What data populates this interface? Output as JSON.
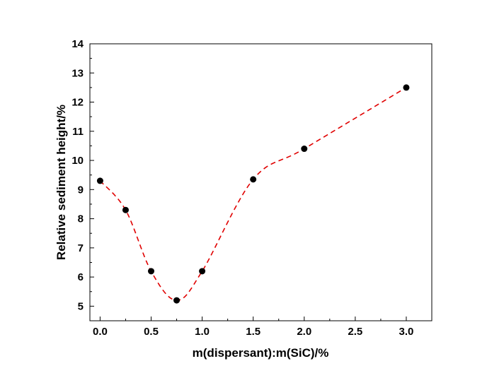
{
  "chart_data": {
    "type": "scatter",
    "title": "",
    "xlabel": "m(dispersant):m(SiC)/%",
    "ylabel": "Relative sediment height/%",
    "xlim": [
      -0.1,
      3.25
    ],
    "ylim": [
      4.5,
      14
    ],
    "x_ticks": [
      0.0,
      0.5,
      1.0,
      1.5,
      2.0,
      2.5,
      3.0
    ],
    "x_tick_labels": [
      "0.0",
      "0.5",
      "1.0",
      "1.5",
      "2.0",
      "2.5",
      "3.0"
    ],
    "y_ticks": [
      5,
      6,
      7,
      8,
      9,
      10,
      11,
      12,
      13,
      14
    ],
    "y_tick_labels": [
      "5",
      "6",
      "7",
      "8",
      "9",
      "10",
      "11",
      "12",
      "13",
      "14"
    ],
    "grid": false,
    "legend": "none",
    "series": [
      {
        "x": [
          0.0,
          0.25,
          0.5,
          0.75,
          1.0,
          1.5,
          2.0,
          3.0
        ],
        "y": [
          9.3,
          8.3,
          6.2,
          5.2,
          6.2,
          9.35,
          10.4,
          12.5
        ],
        "marker": "filled-circle",
        "marker_color": "#000000",
        "fit_line": "smooth-dashed",
        "line_color": "#e00000"
      }
    ]
  }
}
